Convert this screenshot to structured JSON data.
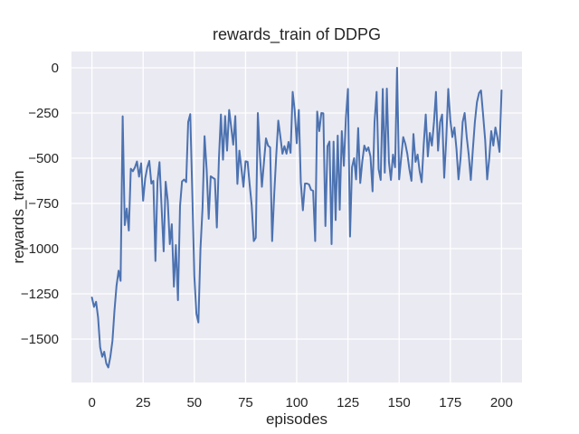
{
  "chart_data": {
    "type": "line",
    "title": "rewards_train of DDPG",
    "xlabel": "episodes",
    "ylabel": "rewards_train",
    "x_ticks": [
      0,
      25,
      50,
      75,
      100,
      125,
      150,
      175,
      200
    ],
    "y_ticks": [
      0,
      -250,
      -500,
      -750,
      -1000,
      -1250,
      -1500
    ],
    "xlim": [
      -10,
      210
    ],
    "ylim": [
      -1740,
      90
    ],
    "grid": true,
    "legend": "none",
    "style": {
      "figure_bg": "#ffffff",
      "axes_bg": "#eaeaf2",
      "grid_color": "#ffffff",
      "line_color": "#4c72b0",
      "text_color": "#262626",
      "line_width": 2
    },
    "series": [
      {
        "name": "rewards_train",
        "x_start": 0,
        "x_step": 1,
        "values": [
          -1270,
          -1322,
          -1294,
          -1380,
          -1545,
          -1598,
          -1570,
          -1635,
          -1657,
          -1597,
          -1510,
          -1345,
          -1205,
          -1122,
          -1178,
          -268,
          -870,
          -778,
          -900,
          -558,
          -572,
          -550,
          -518,
          -602,
          -528,
          -735,
          -612,
          -550,
          -515,
          -640,
          -625,
          -1068,
          -628,
          -522,
          -770,
          -1015,
          -630,
          -735,
          -975,
          -865,
          -1210,
          -980,
          -1285,
          -765,
          -628,
          -618,
          -632,
          -300,
          -256,
          -700,
          -1150,
          -1360,
          -1408,
          -1000,
          -772,
          -378,
          -560,
          -835,
          -600,
          -608,
          -615,
          -883,
          -500,
          -258,
          -508,
          -267,
          -458,
          -233,
          -330,
          -425,
          -267,
          -642,
          -458,
          -560,
          -658,
          -517,
          -520,
          -642,
          -760,
          -958,
          -940,
          -250,
          -480,
          -658,
          -520,
          -390,
          -430,
          -440,
          -958,
          -700,
          -480,
          -292,
          -380,
          -475,
          -433,
          -475,
          -410,
          -470,
          -133,
          -233,
          -417,
          -233,
          -633,
          -788,
          -640,
          -640,
          -645,
          -675,
          -680,
          -958,
          -242,
          -350,
          -250,
          -252,
          -875,
          -433,
          -408,
          -975,
          -408,
          -842,
          -375,
          -785,
          -350,
          -542,
          -280,
          -117,
          -933,
          -550,
          -500,
          -617,
          -333,
          -637,
          -520,
          -430,
          -460,
          -440,
          -490,
          -683,
          -300,
          -133,
          -560,
          -620,
          -117,
          -580,
          -115,
          -520,
          -620,
          -480,
          -550,
          0,
          -617,
          -500,
          -383,
          -420,
          -475,
          -560,
          -625,
          -366,
          -520,
          -480,
          -570,
          -633,
          -430,
          -258,
          -490,
          -360,
          -430,
          -300,
          -133,
          -458,
          -300,
          -258,
          -608,
          -400,
          -117,
          -290,
          -383,
          -330,
          -450,
          -617,
          -500,
          -300,
          -250,
          -383,
          -480,
          -620,
          -450,
          -300,
          -190,
          -140,
          -125,
          -260,
          -400,
          -617,
          -500,
          -350,
          -430,
          -330,
          -385,
          -465,
          -125
        ]
      }
    ]
  }
}
